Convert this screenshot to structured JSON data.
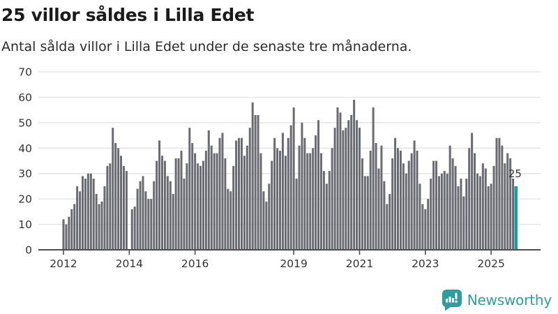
{
  "header": {
    "title": "25 villor såldes i Lilla Edet",
    "subtitle": "Antal sålda villor i Lilla Edet under de senaste tre månaderna."
  },
  "footer": {
    "brand": "Newsworthy"
  },
  "colors": {
    "bar": "#6a6a72",
    "highlight": "#0fa1a6",
    "brand_teal": "#2f9d9d",
    "axis_line": "#4d4d4d",
    "grid_line": "#e3e3e3",
    "tick_text": "#333333",
    "title_text": "#1b1b1b"
  },
  "chart_data": {
    "type": "bar",
    "title": "25 villor såldes i Lilla Edet",
    "subtitle": "Antal sålda villor i Lilla Edet under de senaste tre månaderna.",
    "frequency": "monthly",
    "start_year": 2012,
    "ylabel": "",
    "xlabel": "",
    "ylim": [
      0,
      70
    ],
    "y_ticks": [
      0,
      10,
      20,
      30,
      40,
      50,
      60,
      70
    ],
    "grid": "horizontal",
    "legend": "none",
    "x_ticks": [
      {
        "label": "2012",
        "month_index": 0
      },
      {
        "label": "2014",
        "month_index": 24
      },
      {
        "label": "2016",
        "month_index": 48
      },
      {
        "label": "2019",
        "month_index": 84
      },
      {
        "label": "2021",
        "month_index": 108
      },
      {
        "label": "2023",
        "month_index": 132
      },
      {
        "label": "2025",
        "month_index": 156
      }
    ],
    "values": [
      12,
      10,
      13,
      16,
      18,
      25,
      23,
      29,
      28,
      30,
      30,
      28,
      22,
      18,
      19,
      25,
      33,
      34,
      48,
      42,
      40,
      37,
      33,
      31,
      0,
      16,
      17,
      24,
      27,
      29,
      23,
      20,
      20,
      27,
      35,
      43,
      37,
      35,
      29,
      27,
      22,
      36,
      36,
      39,
      28,
      34,
      48,
      42,
      38,
      34,
      33,
      35,
      39,
      47,
      41,
      38,
      38,
      44,
      46,
      36,
      24,
      23,
      33,
      43,
      44,
      44,
      37,
      41,
      48,
      58,
      53,
      53,
      38,
      23,
      19,
      26,
      35,
      44,
      40,
      39,
      46,
      37,
      44,
      49,
      56,
      28,
      41,
      50,
      44,
      38,
      38,
      40,
      45,
      51,
      38,
      31,
      26,
      31,
      40,
      48,
      56,
      54,
      47,
      48,
      51,
      53,
      59,
      51,
      48,
      36,
      29,
      29,
      39,
      56,
      42,
      32,
      41,
      27,
      18,
      22,
      36,
      44,
      40,
      39,
      34,
      30,
      35,
      38,
      43,
      39,
      26,
      18,
      16,
      20,
      28,
      35,
      35,
      29,
      30,
      31,
      30,
      41,
      36,
      33,
      25,
      28,
      21,
      28,
      40,
      46,
      38,
      30,
      29,
      34,
      32,
      25,
      26,
      33,
      44,
      44,
      41,
      34,
      38,
      36,
      28,
      25
    ],
    "highlight": {
      "index": 165,
      "value": 25,
      "label": "25"
    }
  }
}
